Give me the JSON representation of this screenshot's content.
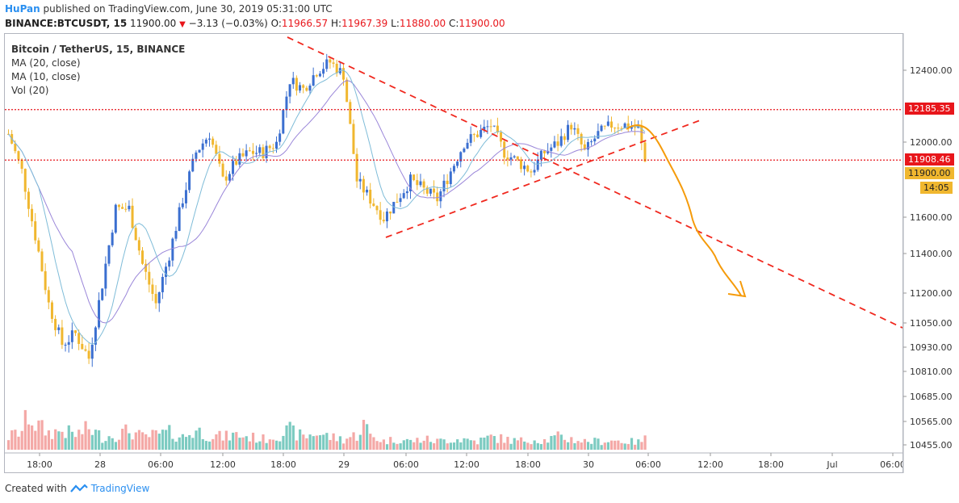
{
  "header": {
    "author": "HuPan",
    "published": "published on TradingView.com, June 30, 2019 05:31:00 UTC",
    "symbol": "BINANCE:BTCUSDT, 15",
    "last": "11900.00",
    "change": "−3.13 (−0.03%)",
    "o_label": "O:",
    "o_value": "11966.57",
    "h_label": "H:",
    "h_value": "11967.39",
    "l_label": "L:",
    "l_value": "11880.00",
    "c_label": "C:",
    "c_value": "11900.00"
  },
  "legend": {
    "title": "Bitcoin / TetherUS, 15, BINANCE",
    "ma20": "MA (20, close)",
    "ma10": "MA (10, close)",
    "vol": "Vol (20)"
  },
  "price_tags": {
    "level_upper": "12185.35",
    "level_lower": "11908.46",
    "last_price": "11900.00",
    "countdown": "14:05"
  },
  "footer": {
    "created_with": "Created with",
    "brand": "TradingView"
  },
  "colors": {
    "up": "#3b6fd0",
    "down": "#f0b72f",
    "ma20": "#9a86d9",
    "ma10": "#7fbcd8",
    "vol_up": "#7ccbc1",
    "vol_down": "#f4a8a6",
    "level": "#e8161b",
    "trend": "#f0281e",
    "projection": "#f59b0b"
  },
  "chart_data": {
    "type": "candlestick",
    "title": "Bitcoin / TetherUS, 15, BINANCE",
    "y_range": [
      10400,
      12600
    ],
    "y_ticks": [
      "12400.00",
      "12000.00",
      "11600.00",
      "11400.00",
      "11200.00",
      "11050.00",
      "10930.00",
      "10810.00",
      "10685.00",
      "10565.00",
      "10455.00"
    ],
    "x_ticks": [
      "18:00",
      "28",
      "06:00",
      "12:00",
      "18:00",
      "29",
      "06:00",
      "12:00",
      "18:00",
      "30",
      "06:00",
      "12:00",
      "18:00",
      "Jul",
      "06:00"
    ],
    "keypoints": {
      "price": [
        [
          0,
          12050
        ],
        [
          4,
          11850
        ],
        [
          8,
          11500
        ],
        [
          12,
          11150
        ],
        [
          16,
          10950
        ],
        [
          20,
          11000
        ],
        [
          24,
          10880
        ],
        [
          28,
          11250
        ],
        [
          32,
          11650
        ],
        [
          36,
          11650
        ],
        [
          40,
          11350
        ],
        [
          44,
          11150
        ],
        [
          48,
          11400
        ],
        [
          52,
          11700
        ],
        [
          56,
          11950
        ],
        [
          60,
          12050
        ],
        [
          64,
          11800
        ],
        [
          68,
          11900
        ],
        [
          72,
          11950
        ],
        [
          76,
          11950
        ],
        [
          80,
          12000
        ],
        [
          84,
          12350
        ],
        [
          88,
          12300
        ],
        [
          92,
          12400
        ],
        [
          96,
          12450
        ],
        [
          100,
          12380
        ],
        [
          104,
          11800
        ],
        [
          108,
          11700
        ],
        [
          112,
          11600
        ],
        [
          116,
          11700
        ],
        [
          120,
          11800
        ],
        [
          124,
          11750
        ],
        [
          128,
          11700
        ],
        [
          132,
          11850
        ],
        [
          136,
          12000
        ],
        [
          140,
          12050
        ],
        [
          144,
          12100
        ],
        [
          148,
          11950
        ],
        [
          152,
          11900
        ],
        [
          156,
          11850
        ],
        [
          160,
          11950
        ],
        [
          164,
          12000
        ],
        [
          168,
          12100
        ],
        [
          172,
          11950
        ],
        [
          176,
          12050
        ],
        [
          180,
          12100
        ],
        [
          184,
          12100
        ],
        [
          188,
          12080
        ],
        [
          190,
          11900
        ]
      ],
      "volume": [
        [
          0,
          30
        ],
        [
          4,
          45
        ],
        [
          6,
          85
        ],
        [
          8,
          60
        ],
        [
          12,
          40
        ],
        [
          16,
          45
        ],
        [
          20,
          35
        ],
        [
          24,
          50
        ],
        [
          28,
          30
        ],
        [
          32,
          35
        ],
        [
          36,
          45
        ],
        [
          40,
          30
        ],
        [
          44,
          35
        ],
        [
          48,
          40
        ],
        [
          52,
          30
        ],
        [
          56,
          45
        ],
        [
          60,
          35
        ],
        [
          64,
          30
        ],
        [
          68,
          35
        ],
        [
          72,
          30
        ],
        [
          76,
          25
        ],
        [
          80,
          35
        ],
        [
          84,
          45
        ],
        [
          88,
          30
        ],
        [
          92,
          40
        ],
        [
          96,
          30
        ],
        [
          100,
          25
        ],
        [
          104,
          35
        ],
        [
          106,
          60
        ],
        [
          108,
          35
        ],
        [
          112,
          20
        ],
        [
          116,
          25
        ],
        [
          120,
          20
        ],
        [
          124,
          25
        ],
        [
          128,
          20
        ],
        [
          132,
          25
        ],
        [
          136,
          25
        ],
        [
          140,
          20
        ],
        [
          144,
          30
        ],
        [
          148,
          25
        ],
        [
          152,
          20
        ],
        [
          156,
          25
        ],
        [
          160,
          22
        ],
        [
          164,
          30
        ],
        [
          168,
          25
        ],
        [
          172,
          20
        ],
        [
          176,
          20
        ],
        [
          180,
          22
        ],
        [
          184,
          20
        ],
        [
          188,
          18
        ],
        [
          190,
          25
        ]
      ]
    },
    "candle_count": 191,
    "levels": [
      12185.35,
      11908.46
    ],
    "last_price": 11900.0,
    "annotations": {
      "descending_trendline": [
        [
          12600,
          0
        ],
        [
          11020,
          0
        ]
      ],
      "ascending_trendline": [
        [
          11450,
          0
        ],
        [
          12100,
          0
        ]
      ],
      "projection": "path from ~12050 down to ~11190 (arrow)"
    }
  }
}
